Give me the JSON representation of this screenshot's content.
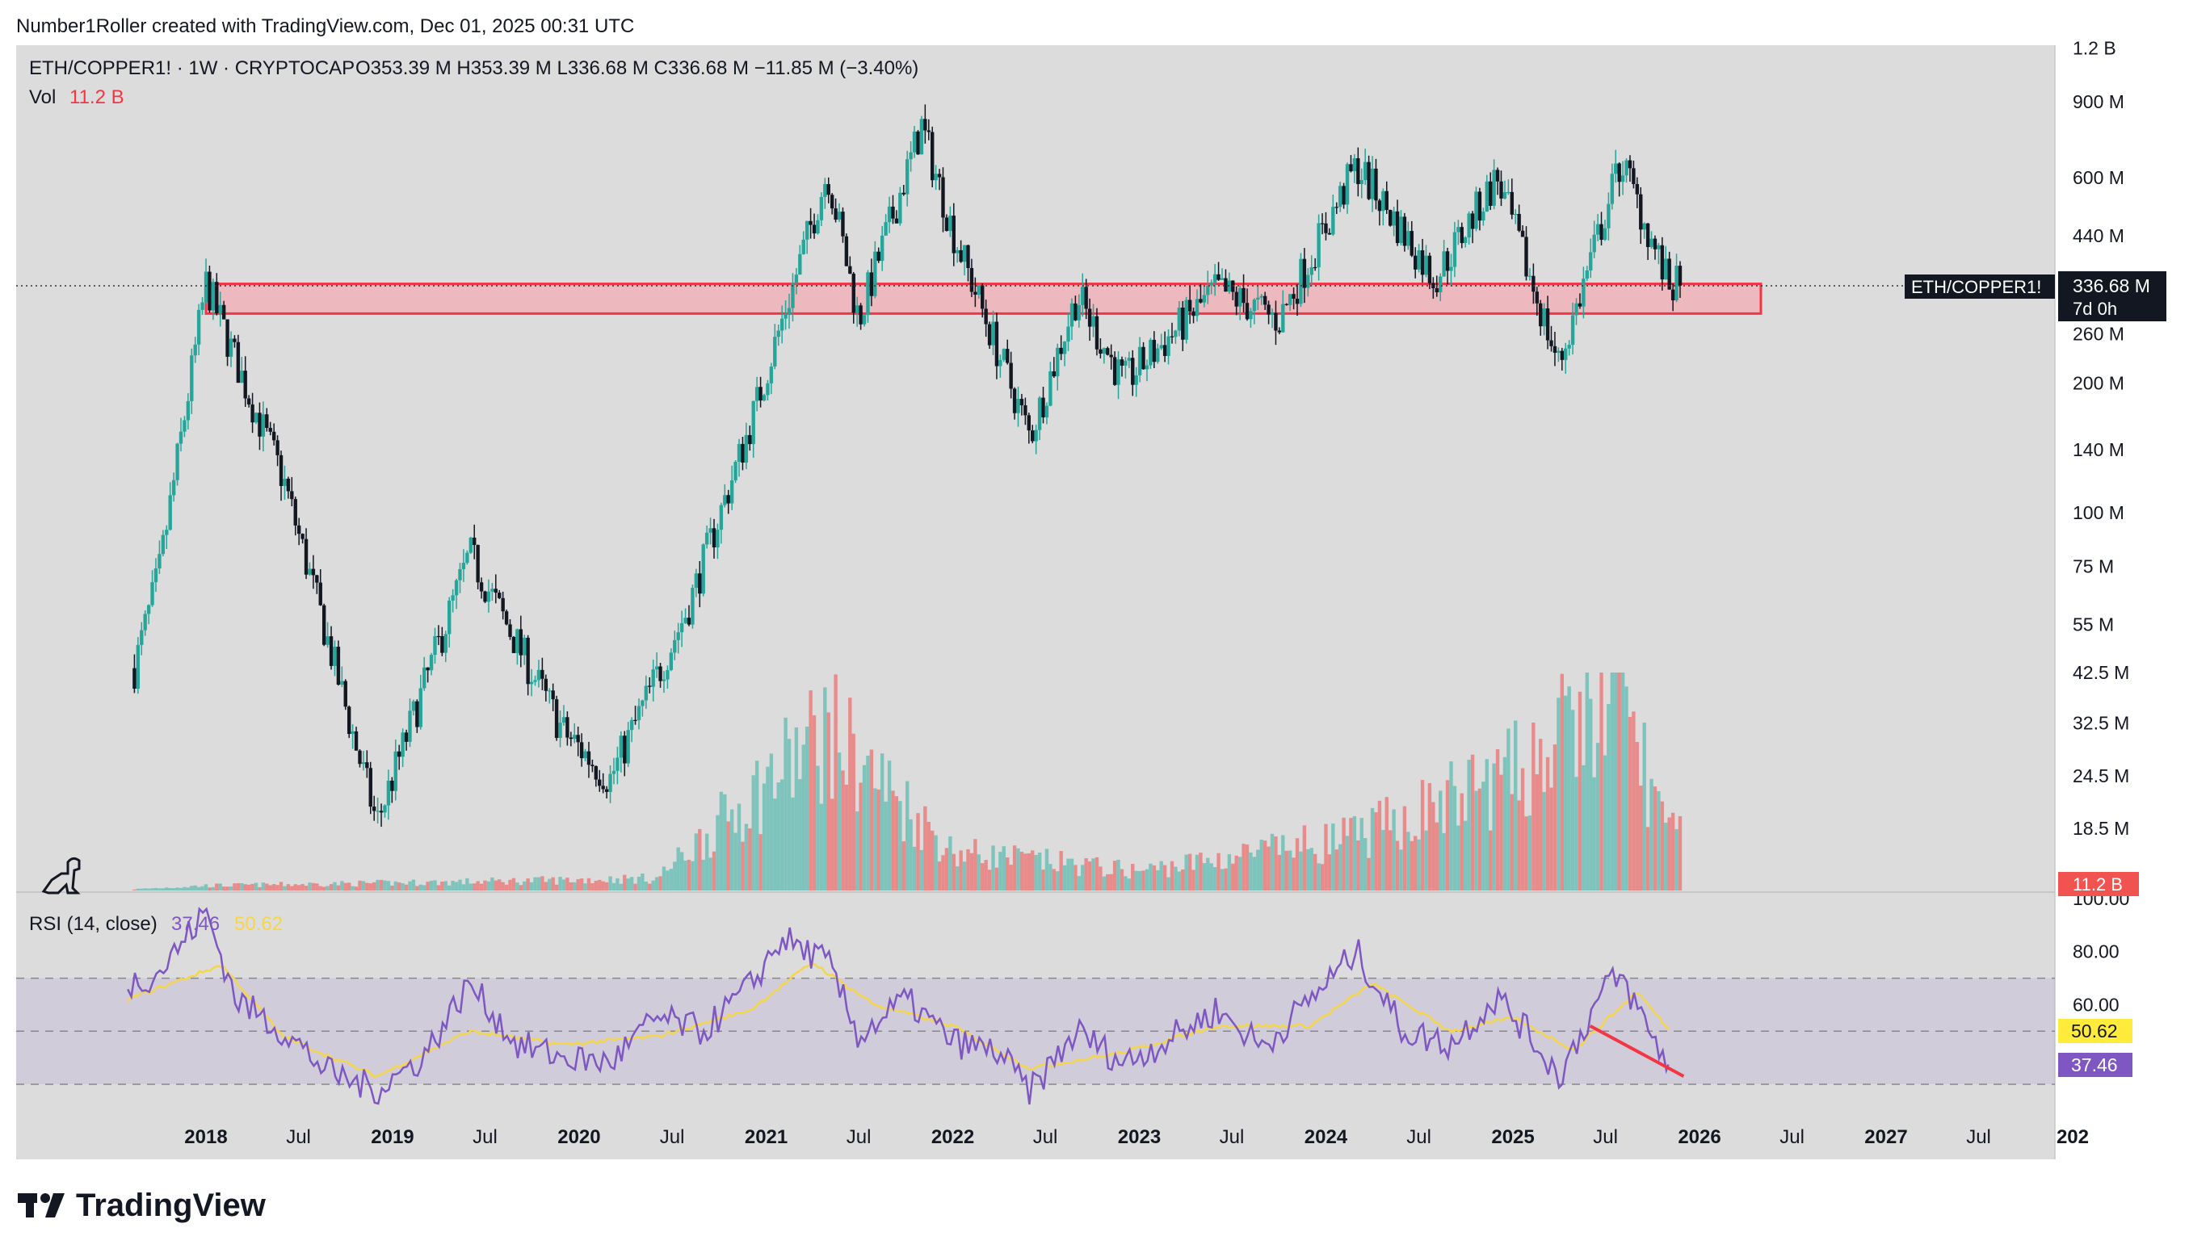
{
  "header": {
    "credit": "Number1Roller created with TradingView.com, Dec 01, 2025 00:31 UTC"
  },
  "legend": {
    "symbol": "ETH/COPPER1! · 1W · CRYPTOCAP",
    "ohlc": "O353.39 M  H353.39 M  L336.68 M  C336.68 M  −11.85 M (−3.40%)",
    "vol_label": "Vol",
    "vol_value": "11.2 B"
  },
  "rsi_legend": {
    "label": "RSI (14, close)",
    "rsi_value": "37.46",
    "ma_value": "50.62"
  },
  "price_tag": {
    "symbol": "ETH/COPPER1!",
    "price": "336.68 M",
    "countdown": "7d 0h"
  },
  "vol_tag": "11.2 B",
  "rsi_tags": {
    "ma": "50.62",
    "rsi": "37.46"
  },
  "price_axis_labels": [
    "1.2 B",
    "900 M",
    "600 M",
    "440 M",
    "336.68 M",
    "260 M",
    "200 M",
    "140 M",
    "100 M",
    "75 M",
    "55 M",
    "42.5 M",
    "32.5 M",
    "24.5 M",
    "18.5 M"
  ],
  "rsi_axis_labels": [
    "100.00",
    "80.00",
    "60.00"
  ],
  "time_axis_labels": [
    "2018",
    "Jul",
    "2019",
    "Jul",
    "2020",
    "Jul",
    "2021",
    "Jul",
    "2022",
    "Jul",
    "2023",
    "Jul",
    "2024",
    "Jul",
    "2025",
    "Jul",
    "2026",
    "Jul",
    "2027",
    "Jul",
    "202"
  ],
  "footer": {
    "brand": "TradingView"
  },
  "colors": {
    "pane_bg": "#dcdcdc",
    "up": "#26a69a",
    "down": "#131722",
    "vol_up": "#7fc4bc",
    "vol_down": "#e88b8b",
    "rsi_line": "#7e57c2",
    "rsi_ma": "#f5d64a",
    "zone_fill": "#f0b3b8",
    "zone_border": "#f23645",
    "divergence": "#f23645",
    "vol_tag_bg": "#f05350",
    "rsi_tag_bg": "#7e57c2",
    "ma_tag_bg": "#ffeb3b"
  },
  "chart_data": [
    {
      "type": "candlestick",
      "title": "ETH/COPPER1! · 1W · CRYPTOCAP",
      "y_scale": "log",
      "ylim": [
        15000000,
        1200000000
      ],
      "x_range": [
        "2017-08",
        "2028-01"
      ],
      "last_close": 336680000,
      "key_points": [
        {
          "date": "2017-08",
          "value": 38000000
        },
        {
          "date": "2017-10",
          "value": 72000000
        },
        {
          "date": "2018-01",
          "value": 340000000
        },
        {
          "date": "2018-04",
          "value": 180000000
        },
        {
          "date": "2018-06",
          "value": 120000000
        },
        {
          "date": "2018-09",
          "value": 48000000
        },
        {
          "date": "2018-12",
          "value": 19000000
        },
        {
          "date": "2019-06",
          "value": 80000000
        },
        {
          "date": "2019-12",
          "value": 31000000
        },
        {
          "date": "2020-03",
          "value": 24000000
        },
        {
          "date": "2020-08",
          "value": 60000000
        },
        {
          "date": "2020-12",
          "value": 160000000
        },
        {
          "date": "2021-05",
          "value": 620000000
        },
        {
          "date": "2021-07",
          "value": 280000000
        },
        {
          "date": "2021-11",
          "value": 790000000
        },
        {
          "date": "2022-01",
          "value": 450000000
        },
        {
          "date": "2022-06",
          "value": 150000000
        },
        {
          "date": "2022-09",
          "value": 320000000
        },
        {
          "date": "2022-12",
          "value": 200000000
        },
        {
          "date": "2023-06",
          "value": 330000000
        },
        {
          "date": "2023-10",
          "value": 280000000
        },
        {
          "date": "2024-03",
          "value": 640000000
        },
        {
          "date": "2024-08",
          "value": 350000000
        },
        {
          "date": "2024-12",
          "value": 600000000
        },
        {
          "date": "2025-04",
          "value": 220000000
        },
        {
          "date": "2025-08",
          "value": 660000000
        },
        {
          "date": "2025-11",
          "value": 336680000
        }
      ],
      "support_zone": {
        "low": 290000000,
        "high": 340000000,
        "from": "2018-01",
        "to": "2026-05"
      }
    },
    {
      "type": "bar",
      "title": "Vol",
      "last_value": "11.2 B",
      "ylim": [
        0,
        45000000000
      ],
      "key_points": [
        {
          "date": "2017-08",
          "value": 200000000
        },
        {
          "date": "2018-01",
          "value": 1000000000
        },
        {
          "date": "2019-06",
          "value": 1800000000
        },
        {
          "date": "2020-06",
          "value": 2500000000
        },
        {
          "date": "2021-02",
          "value": 25000000000
        },
        {
          "date": "2021-05",
          "value": 33000000000
        },
        {
          "date": "2022-01",
          "value": 8000000000
        },
        {
          "date": "2023-01",
          "value": 4000000000
        },
        {
          "date": "2024-03",
          "value": 11000000000
        },
        {
          "date": "2025-01",
          "value": 24000000000
        },
        {
          "date": "2025-08",
          "value": 40000000000
        },
        {
          "date": "2025-11",
          "value": 11200000000
        }
      ]
    },
    {
      "type": "line",
      "title": "RSI (14, close)",
      "ylim": [
        0,
        100
      ],
      "bands": [
        30,
        50,
        70
      ],
      "series": [
        {
          "name": "RSI (14, close)",
          "last": 37.46,
          "points": [
            [
              "2017-08",
              68
            ],
            [
              "2017-10",
              72
            ],
            [
              "2018-01",
              95
            ],
            [
              "2018-03",
              62
            ],
            [
              "2018-06",
              50
            ],
            [
              "2018-09",
              34
            ],
            [
              "2018-12",
              28
            ],
            [
              "2019-03",
              40
            ],
            [
              "2019-06",
              68
            ],
            [
              "2019-09",
              45
            ],
            [
              "2019-12",
              40
            ],
            [
              "2020-03",
              38
            ],
            [
              "2020-06",
              55
            ],
            [
              "2020-09",
              50
            ],
            [
              "2020-12",
              67
            ],
            [
              "2021-02",
              85
            ],
            [
              "2021-05",
              76
            ],
            [
              "2021-07",
              48
            ],
            [
              "2021-10",
              62
            ],
            [
              "2022-01",
              46
            ],
            [
              "2022-04",
              42
            ],
            [
              "2022-06",
              27
            ],
            [
              "2022-09",
              50
            ],
            [
              "2022-12",
              38
            ],
            [
              "2023-03",
              47
            ],
            [
              "2023-06",
              58
            ],
            [
              "2023-09",
              44
            ],
            [
              "2023-12",
              62
            ],
            [
              "2024-03",
              80
            ],
            [
              "2024-06",
              50
            ],
            [
              "2024-09",
              45
            ],
            [
              "2024-12",
              63
            ],
            [
              "2025-02",
              49
            ],
            [
              "2025-04",
              33
            ],
            [
              "2025-07",
              67
            ],
            [
              "2025-08",
              70
            ],
            [
              "2025-10",
              48
            ],
            [
              "2025-11",
              37.46
            ]
          ]
        },
        {
          "name": "RSI-based MA",
          "last": 50.62,
          "points": [
            [
              "2017-08",
              62
            ],
            [
              "2018-02",
              75
            ],
            [
              "2018-06",
              48
            ],
            [
              "2018-12",
              33
            ],
            [
              "2019-06",
              50
            ],
            [
              "2019-12",
              45
            ],
            [
              "2020-06",
              48
            ],
            [
              "2020-12",
              58
            ],
            [
              "2021-04",
              76
            ],
            [
              "2021-08",
              60
            ],
            [
              "2022-01",
              52
            ],
            [
              "2022-06",
              36
            ],
            [
              "2022-12",
              42
            ],
            [
              "2023-06",
              52
            ],
            [
              "2023-12",
              52
            ],
            [
              "2024-04",
              68
            ],
            [
              "2024-09",
              50
            ],
            [
              "2025-01",
              55
            ],
            [
              "2025-05",
              43
            ],
            [
              "2025-09",
              65
            ],
            [
              "2025-11",
              50.62
            ]
          ]
        }
      ],
      "divergence_line": {
        "from": [
          "2025-06",
          52
        ],
        "to": [
          "2025-12",
          33
        ]
      }
    }
  ]
}
